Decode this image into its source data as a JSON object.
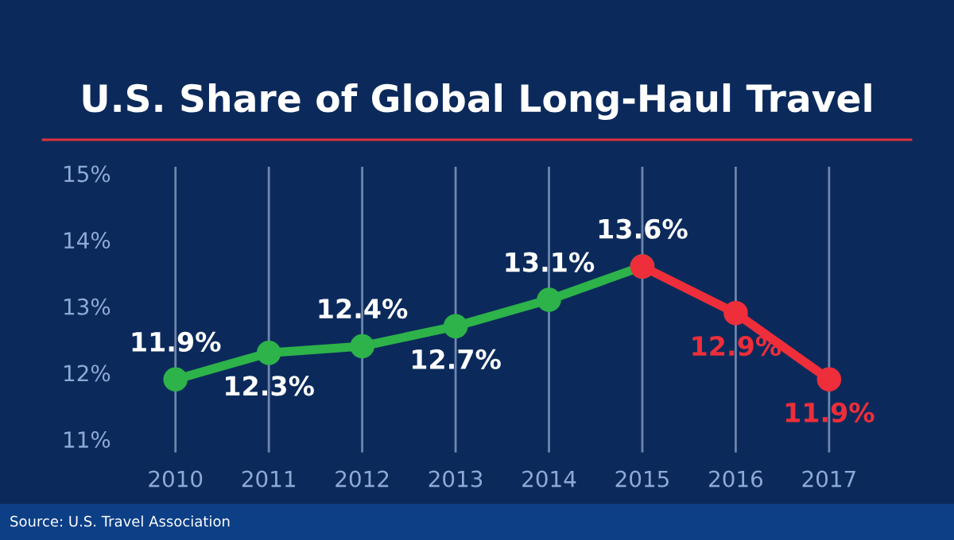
{
  "chart_data": {
    "type": "line",
    "title": "U.S. Share of Global Long-Haul Travel",
    "categories": [
      "2010",
      "2011",
      "2012",
      "2013",
      "2014",
      "2015",
      "2016",
      "2017"
    ],
    "series": [
      {
        "color": "#2db34a",
        "values": [
          11.9,
          12.3,
          12.4,
          12.7,
          13.1,
          13.6,
          null,
          null
        ],
        "value_labels": [
          "11.9%",
          "12.3%",
          "12.4%",
          "12.7%",
          "13.1%",
          "13.6%",
          null,
          null
        ]
      },
      {
        "color": "#ee2e3a",
        "values": [
          null,
          null,
          null,
          null,
          null,
          13.6,
          12.9,
          11.9
        ],
        "value_labels": [
          null,
          null,
          null,
          null,
          null,
          null,
          "12.9%",
          "11.9%"
        ]
      }
    ],
    "ylim": [
      10.8,
      15.1
    ],
    "yticks": [
      {
        "value": 11,
        "label": "11%"
      },
      {
        "value": 12,
        "label": "12%"
      },
      {
        "value": 13,
        "label": "13%"
      },
      {
        "value": 14,
        "label": "14%"
      },
      {
        "value": 15,
        "label": "15%"
      }
    ],
    "grid": "x",
    "marker": "circle",
    "line_style": "solid",
    "annotations": [
      "Source: U.S. Travel Association"
    ]
  }
}
